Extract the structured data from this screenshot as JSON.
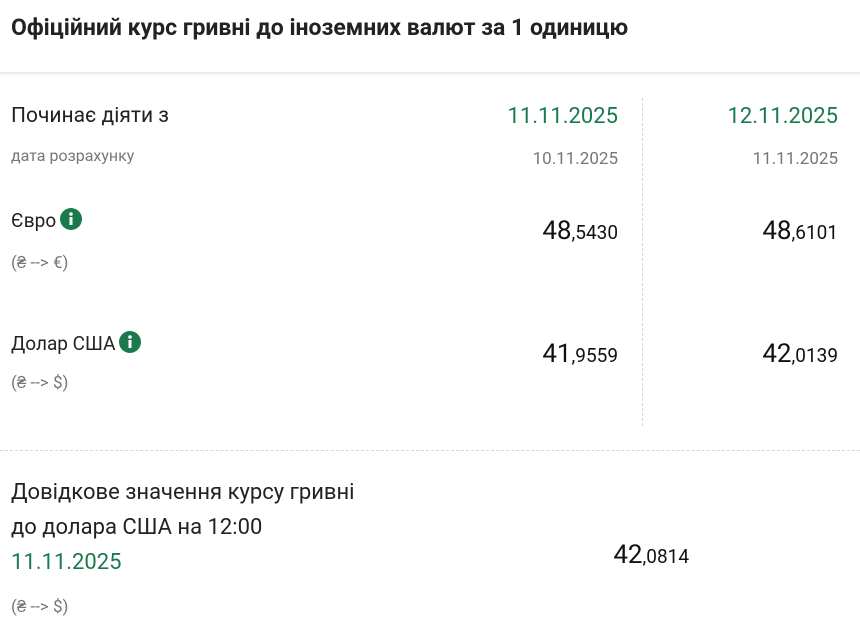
{
  "header": {
    "title": "Офіційний курс гривні до іноземних валют за 1 одиницю"
  },
  "table": {
    "label": "Починає діяти з",
    "sublabel": "дата розрахунку",
    "columns": [
      {
        "date": "11.11.2025",
        "calc": "10.11.2025"
      },
      {
        "date": "12.11.2025",
        "calc": "11.11.2025"
      }
    ],
    "currencies": [
      {
        "name": "Євро",
        "direction": "(₴ --> €)",
        "rates": [
          {
            "int": "48",
            "frac": ",5430"
          },
          {
            "int": "48",
            "frac": ",6101"
          }
        ]
      },
      {
        "name": "Долар США",
        "direction": "(₴ --> $)",
        "rates": [
          {
            "int": "41",
            "frac": ",9559"
          },
          {
            "int": "42",
            "frac": ",0139"
          }
        ]
      }
    ]
  },
  "reference": {
    "line1": "Довідкове значення курсу гривні",
    "line2": "до долара США на 12:00",
    "date": "11.11.2025",
    "direction": "(₴ --> $)",
    "rate": {
      "int": "42",
      "frac": ",0814"
    }
  }
}
